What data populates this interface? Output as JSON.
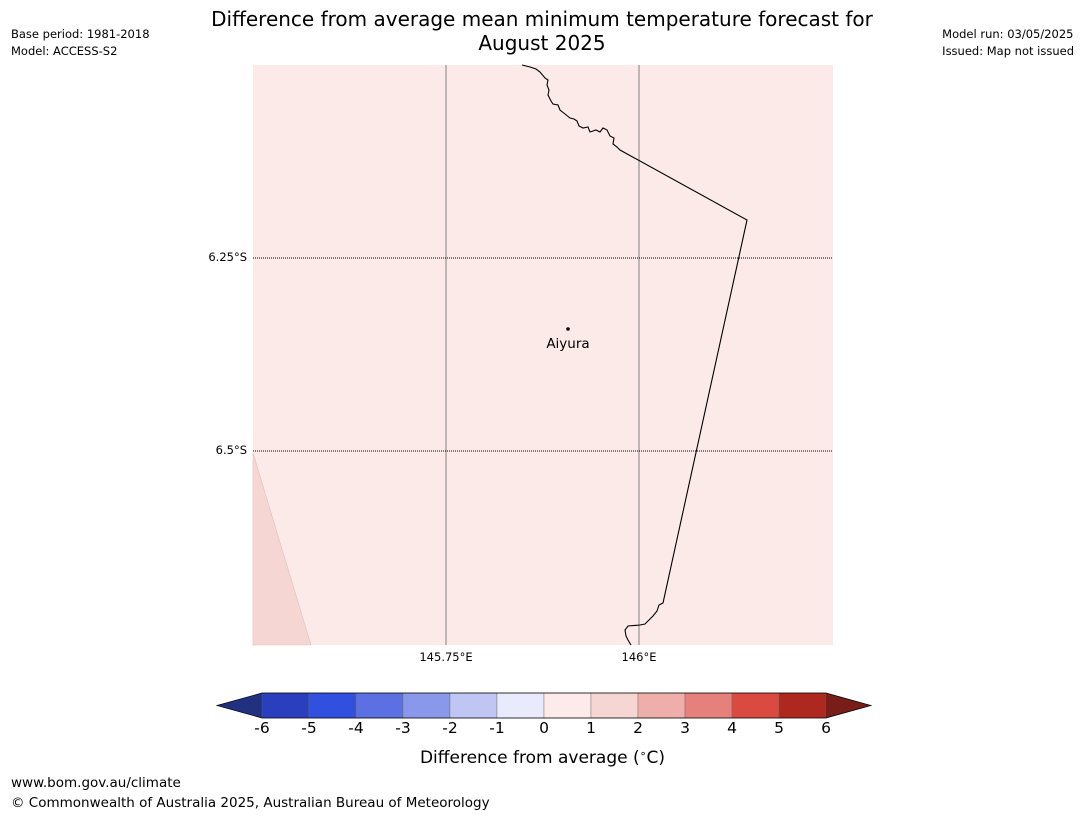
{
  "header": {
    "title_line1": "Difference from average mean minimum temperature forecast for",
    "title_line2": "August 2025",
    "base_period": "Base period: 1981-2018",
    "model": "Model: ACCESS-S2",
    "model_run": "Model run: 03/05/2025",
    "issued": "Issued: Map not issued"
  },
  "map": {
    "background_color": "#fbeae8",
    "corner_color": "#f5d6d3",
    "lat_labels": [
      "6.25°S",
      "6.5°S"
    ],
    "lon_labels": [
      "145.75°E",
      "146°E"
    ],
    "place": {
      "name": "Aiyura"
    }
  },
  "colorbar": {
    "title": "Difference from average (",
    "unit_symbol": "∘",
    "unit_suffix": "C)",
    "ticks": [
      "-6",
      "-5",
      "-4",
      "-3",
      "-2",
      "-1",
      "0",
      "1",
      "2",
      "3",
      "4",
      "5",
      "6"
    ],
    "colors": [
      "#22317f",
      "#2a3fbd",
      "#3250e0",
      "#5a70e3",
      "#8a98ec",
      "#c0c6f4",
      "#e9eafc",
      "#fcebe9",
      "#f5d6d3",
      "#eeaeaa",
      "#e6807a",
      "#db4a40",
      "#ae2820",
      "#7a1c17"
    ]
  },
  "footer": {
    "url": "www.bom.gov.au/climate",
    "copyright": "© Commonwealth of Australia 2025, Australian Bureau of Meteorology"
  }
}
